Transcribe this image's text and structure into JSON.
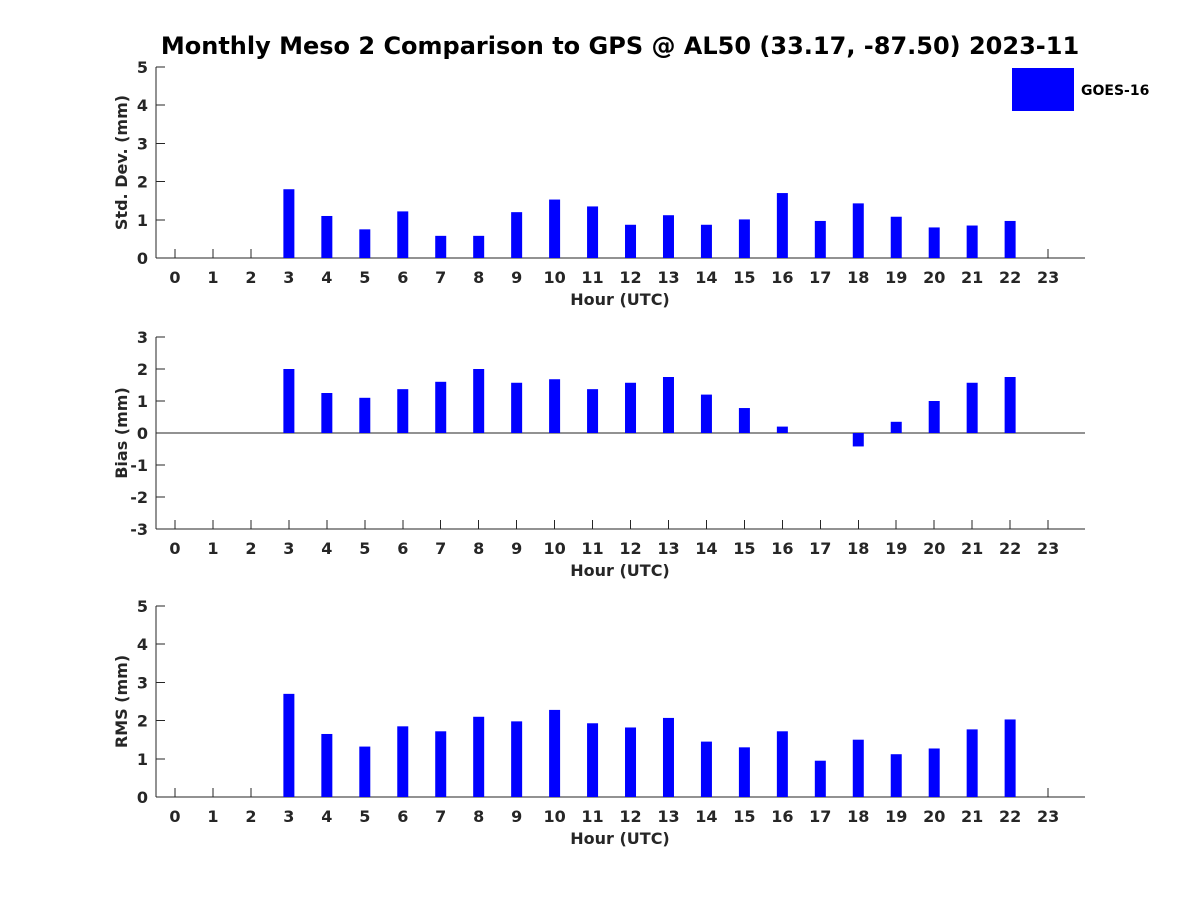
{
  "title": "Monthly Meso 2 Comparison to GPS @ AL50 (33.17, -87.50) 2023-11",
  "legend": {
    "label": "GOES-16",
    "color": "#0000ff",
    "placement": "top-right"
  },
  "chart_data": [
    {
      "type": "bar",
      "xlabel": "Hour (UTC)",
      "ylabel": "Std. Dev. (mm)",
      "ylim": [
        0,
        5
      ],
      "yticks": [
        0,
        1,
        2,
        3,
        4,
        5
      ],
      "categories": [
        0,
        1,
        2,
        3,
        4,
        5,
        6,
        7,
        8,
        9,
        10,
        11,
        12,
        13,
        14,
        15,
        16,
        17,
        18,
        19,
        20,
        21,
        22,
        23
      ],
      "series": [
        {
          "name": "GOES-16",
          "values": [
            null,
            null,
            null,
            1.8,
            1.1,
            0.75,
            1.22,
            0.58,
            0.58,
            1.2,
            1.53,
            1.35,
            0.87,
            1.12,
            0.87,
            1.01,
            1.7,
            0.97,
            1.43,
            1.08,
            0.8,
            0.85,
            0.97,
            null
          ]
        }
      ]
    },
    {
      "type": "bar",
      "xlabel": "Hour (UTC)",
      "ylabel": "Bias (mm)",
      "ylim": [
        -3,
        3
      ],
      "yticks": [
        -3,
        -2,
        -1,
        0,
        1,
        2,
        3
      ],
      "categories": [
        0,
        1,
        2,
        3,
        4,
        5,
        6,
        7,
        8,
        9,
        10,
        11,
        12,
        13,
        14,
        15,
        16,
        17,
        18,
        19,
        20,
        21,
        22,
        23
      ],
      "series": [
        {
          "name": "GOES-16",
          "values": [
            null,
            null,
            null,
            2.0,
            1.25,
            1.1,
            1.37,
            1.6,
            2.0,
            1.57,
            1.68,
            1.37,
            1.57,
            1.75,
            1.2,
            0.78,
            0.2,
            null,
            -0.42,
            0.35,
            1.0,
            1.57,
            1.75,
            null
          ]
        }
      ]
    },
    {
      "type": "bar",
      "xlabel": "Hour (UTC)",
      "ylabel": "RMS (mm)",
      "ylim": [
        0,
        5
      ],
      "yticks": [
        0,
        1,
        2,
        3,
        4,
        5
      ],
      "categories": [
        0,
        1,
        2,
        3,
        4,
        5,
        6,
        7,
        8,
        9,
        10,
        11,
        12,
        13,
        14,
        15,
        16,
        17,
        18,
        19,
        20,
        21,
        22,
        23
      ],
      "series": [
        {
          "name": "GOES-16",
          "values": [
            null,
            null,
            null,
            2.7,
            1.65,
            1.32,
            1.85,
            1.72,
            2.1,
            1.98,
            2.28,
            1.93,
            1.82,
            2.07,
            1.45,
            1.3,
            1.72,
            0.95,
            1.5,
            1.12,
            1.27,
            1.77,
            2.03,
            null
          ]
        }
      ]
    }
  ]
}
